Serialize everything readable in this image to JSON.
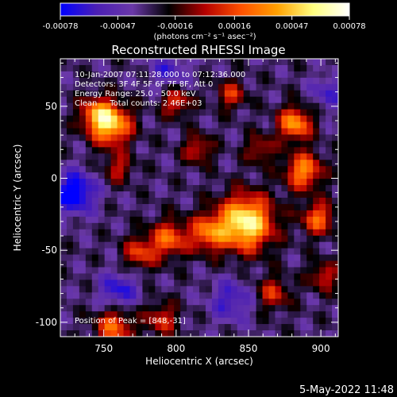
{
  "chart_data": {
    "type": "heatmap",
    "title": "Reconstructed RHESSI Image",
    "xlabel": "Heliocentric X (arcsec)",
    "ylabel": "Heliocentric Y (arcsec)",
    "xlim": [
      720,
      912
    ],
    "ylim": [
      -110,
      83
    ],
    "x_ticks": [
      750,
      800,
      850,
      900
    ],
    "y_ticks": [
      -100,
      -50,
      0,
      50
    ],
    "colorbar": {
      "range": [
        -0.00078,
        0.00078
      ],
      "ticks": [
        "-0.00078",
        "-0.00047",
        "-0.00016",
        "0.00016",
        "0.00047",
        "0.00078"
      ],
      "label": "(photons cm⁻² s⁻¹ asec⁻²)",
      "colors": [
        "#0000ff",
        "#4b1fb4",
        "#6a38a8",
        "#000000",
        "#b40000",
        "#ff5000",
        "#ffa000",
        "#ffff80",
        "#ffffff"
      ]
    },
    "annotations": [
      "10-Jan-2007 07:11:28.000 to 07:12:36.000",
      "Detectors: 3F 4F 5F 6F 7F 8F, Att 0",
      "Energy Range: 25.0 - 50.0 keV",
      "Clean     Total counts: 2.46E+03"
    ],
    "peak_label": "Position of Peak = [848,-31]",
    "peak_position": [
      848,
      -31
    ],
    "sources": [
      {
        "x": 848,
        "y": -31,
        "amp": 1.0,
        "sigma": 13
      },
      {
        "x": 822,
        "y": -38,
        "amp": 0.55,
        "sigma": 9
      },
      {
        "x": 755,
        "y": 37,
        "amp": 0.8,
        "sigma": 10
      },
      {
        "x": 745,
        "y": 45,
        "amp": 0.5,
        "sigma": 8
      },
      {
        "x": 795,
        "y": -42,
        "amp": 0.55,
        "sigma": 9
      },
      {
        "x": 775,
        "y": -52,
        "amp": 0.45,
        "sigma": 8
      },
      {
        "x": 882,
        "y": 38,
        "amp": 0.7,
        "sigma": 8
      },
      {
        "x": 888,
        "y": 5,
        "amp": 0.65,
        "sigma": 9
      },
      {
        "x": 898,
        "y": -28,
        "amp": 0.55,
        "sigma": 8
      },
      {
        "x": 800,
        "y": 53,
        "amp": 0.45,
        "sigma": 7
      },
      {
        "x": 815,
        "y": 20,
        "amp": 0.4,
        "sigma": 7
      },
      {
        "x": 757,
        "y": -103,
        "amp": 0.55,
        "sigma": 9
      },
      {
        "x": 790,
        "y": -98,
        "amp": 0.4,
        "sigma": 8
      },
      {
        "x": 858,
        "y": 20,
        "amp": 0.35,
        "sigma": 7
      },
      {
        "x": 838,
        "y": 58,
        "amp": 0.4,
        "sigma": 7
      },
      {
        "x": 867,
        "y": -80,
        "amp": 0.4,
        "sigma": 8
      },
      {
        "x": 902,
        "y": -68,
        "amp": 0.4,
        "sigma": 7
      },
      {
        "x": 760,
        "y": 7,
        "amp": 0.35,
        "sigma": 7
      },
      {
        "x": 730,
        "y": -10,
        "amp": -0.6,
        "sigma": 10
      },
      {
        "x": 760,
        "y": -78,
        "amp": -0.4,
        "sigma": 9
      },
      {
        "x": 838,
        "y": -85,
        "amp": -0.35,
        "sigma": 10
      },
      {
        "x": 795,
        "y": 75,
        "amp": -0.3,
        "sigma": 9
      },
      {
        "x": 905,
        "y": 60,
        "amp": -0.3,
        "sigma": 8
      }
    ]
  },
  "footer": {
    "timestamp": "5-May-2022 11:48"
  }
}
